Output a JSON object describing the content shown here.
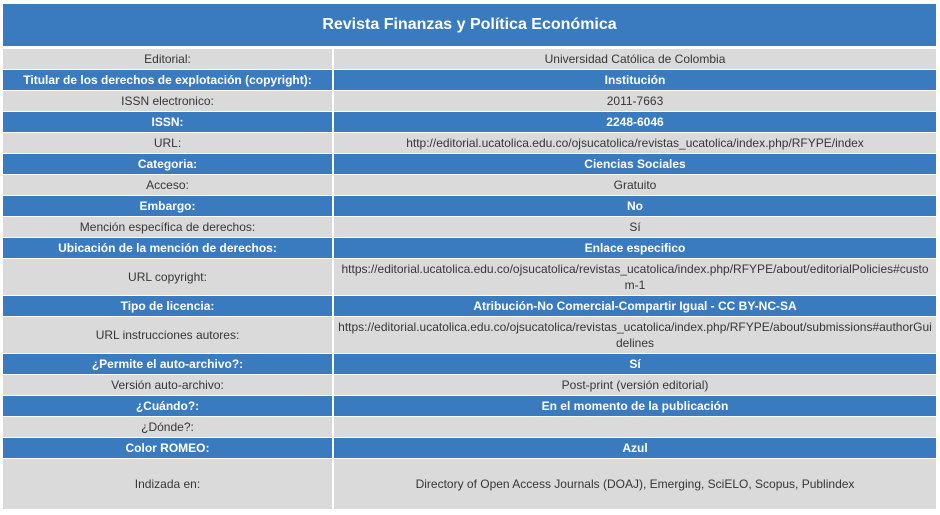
{
  "title": "Revista Finanzas y Política Económica",
  "theme": {
    "accent": "#3a7bc0",
    "row_gray": "#dadada",
    "text_dark": "#363636"
  },
  "rows": [
    {
      "label": "Editorial:",
      "value": "Universidad Católica de Colombia"
    },
    {
      "label": "Titular de los derechos de explotación (copyright):",
      "value": "Institución"
    },
    {
      "label": "ISSN electronico:",
      "value": "2011-7663"
    },
    {
      "label": "ISSN:",
      "value": "2248-6046"
    },
    {
      "label": "URL:",
      "value": "http://editorial.ucatolica.edu.co/ojsucatolica/revistas_ucatolica/index.php/RFYPE/index"
    },
    {
      "label": "Categoria:",
      "value": "Ciencias Sociales"
    },
    {
      "label": "Acceso:",
      "value": "Gratuito"
    },
    {
      "label": "Embargo:",
      "value": "No"
    },
    {
      "label": "Mención específica de derechos:",
      "value": "Sí"
    },
    {
      "label": "Ubicación de la mención de derechos:",
      "value": "Enlace especifico"
    },
    {
      "label": "URL copyright:",
      "value": "https://editorial.ucatolica.edu.co/ojsucatolica/revistas_ucatolica/index.php/RFYPE/about/editorialPolicies#custom-1"
    },
    {
      "label": "Tipo de licencia:",
      "value": "Atribución-No Comercial-Compartir Igual - CC BY-NC-SA"
    },
    {
      "label": "URL instrucciones autores:",
      "value": "https://editorial.ucatolica.edu.co/ojsucatolica/revistas_ucatolica/index.php/RFYPE/about/submissions#authorGuidelines"
    },
    {
      "label": "¿Permite el auto-archivo?:",
      "value": "Sí"
    },
    {
      "label": "Versión auto-archivo:",
      "value": "Post-print (versión editorial)"
    },
    {
      "label": "¿Cuándo?:",
      "value": "En el momento de la publicación"
    },
    {
      "label": "¿Dónde?:",
      "value": ""
    },
    {
      "label": "Color ROMEO:",
      "value": "Azul"
    },
    {
      "label": "Indizada en:",
      "value": "Directory of Open Access Journals (DOAJ), Emerging, SciELO, Scopus, Publindex"
    }
  ]
}
